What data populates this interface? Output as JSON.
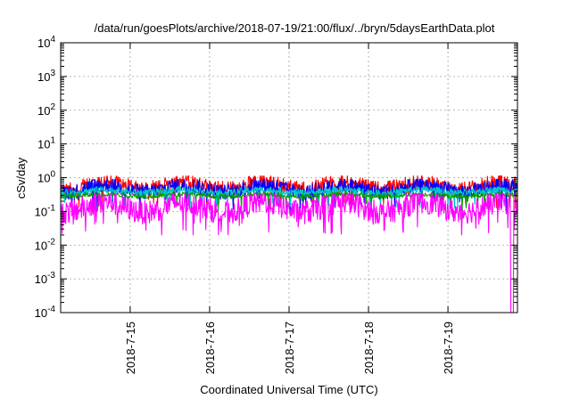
{
  "chart_data": {
    "type": "line",
    "title": "/data/run/goesPlots/archive/2018-07-19/21:00/flux/../bryn/5daysEarthData.plot",
    "xlabel": "Coordinated Universal Time (UTC)",
    "ylabel": "cSv/day",
    "yscale": "log",
    "ylim": [
      0.0001,
      10000
    ],
    "y_ticks": [
      {
        "value": 0.0001,
        "mantissa": "10",
        "exp": "-4"
      },
      {
        "value": 0.001,
        "mantissa": "10",
        "exp": "-3"
      },
      {
        "value": 0.01,
        "mantissa": "10",
        "exp": "-2"
      },
      {
        "value": 0.1,
        "mantissa": "10",
        "exp": "-1"
      },
      {
        "value": 1,
        "mantissa": "10",
        "exp": "0"
      },
      {
        "value": 10,
        "mantissa": "10",
        "exp": "1"
      },
      {
        "value": 100,
        "mantissa": "10",
        "exp": "2"
      },
      {
        "value": 1000,
        "mantissa": "10",
        "exp": "3"
      },
      {
        "value": 10000,
        "mantissa": "10",
        "exp": "4"
      }
    ],
    "xlim": [
      "2018-07-14 03:00",
      "2018-07-19 21:00"
    ],
    "x_ticks": [
      "2018-7-15",
      "2018-7-16",
      "2018-7-17",
      "2018-7-18",
      "2018-7-19"
    ],
    "grid": true,
    "series": [
      {
        "color": "#ff0000",
        "level_range": [
          0.3,
          1.0
        ]
      },
      {
        "color": "#0000ff",
        "level_range": [
          0.25,
          0.8
        ]
      },
      {
        "color": "#00c8c8",
        "level_range": [
          0.3,
          0.5
        ]
      },
      {
        "color": "#00a000",
        "level_range": [
          0.25,
          0.35
        ]
      },
      {
        "color": "#ff00ff",
        "level_range": [
          0.05,
          0.3
        ],
        "min_at_end": 0.0001
      }
    ]
  }
}
